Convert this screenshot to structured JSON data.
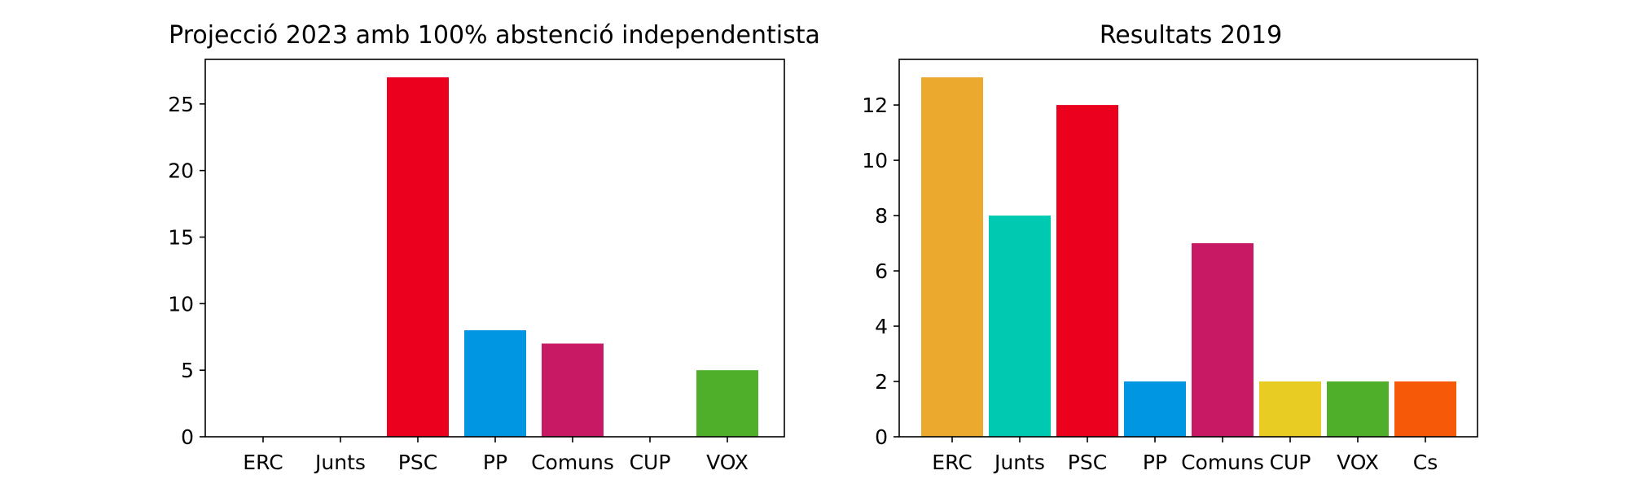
{
  "chart_data": [
    {
      "type": "bar",
      "title": "Projecció 2023 amb 100% abstenció independentista",
      "xlabel": "",
      "ylabel": "",
      "categories": [
        "ERC",
        "Junts",
        "PSC",
        "PP",
        "Comuns",
        "CUP",
        "VOX"
      ],
      "values": [
        0,
        0,
        27,
        8,
        7,
        0,
        5
      ],
      "colors": [
        "#EBAA2D",
        "#00C9B1",
        "#EB001E",
        "#0096E1",
        "#C81964",
        "#E8CB23",
        "#4FAE2A"
      ],
      "ylim": [
        0,
        28.35
      ],
      "yticks": [
        0,
        5,
        10,
        15,
        20,
        25
      ],
      "grid": false,
      "legend": "none"
    },
    {
      "type": "bar",
      "title": "Resultats 2019",
      "xlabel": "",
      "ylabel": "",
      "categories": [
        "ERC",
        "Junts",
        "PSC",
        "PP",
        "Comuns",
        "CUP",
        "VOX",
        "Cs"
      ],
      "values": [
        13,
        8,
        12,
        2,
        7,
        2,
        2,
        2
      ],
      "colors": [
        "#EBAA2D",
        "#00C9B1",
        "#EB001E",
        "#0096E1",
        "#C81964",
        "#E8CB23",
        "#4FAE2A",
        "#F65A09"
      ],
      "ylim": [
        0,
        13.65
      ],
      "yticks": [
        0,
        2,
        4,
        6,
        8,
        10,
        12
      ],
      "grid": false,
      "legend": "none"
    }
  ]
}
